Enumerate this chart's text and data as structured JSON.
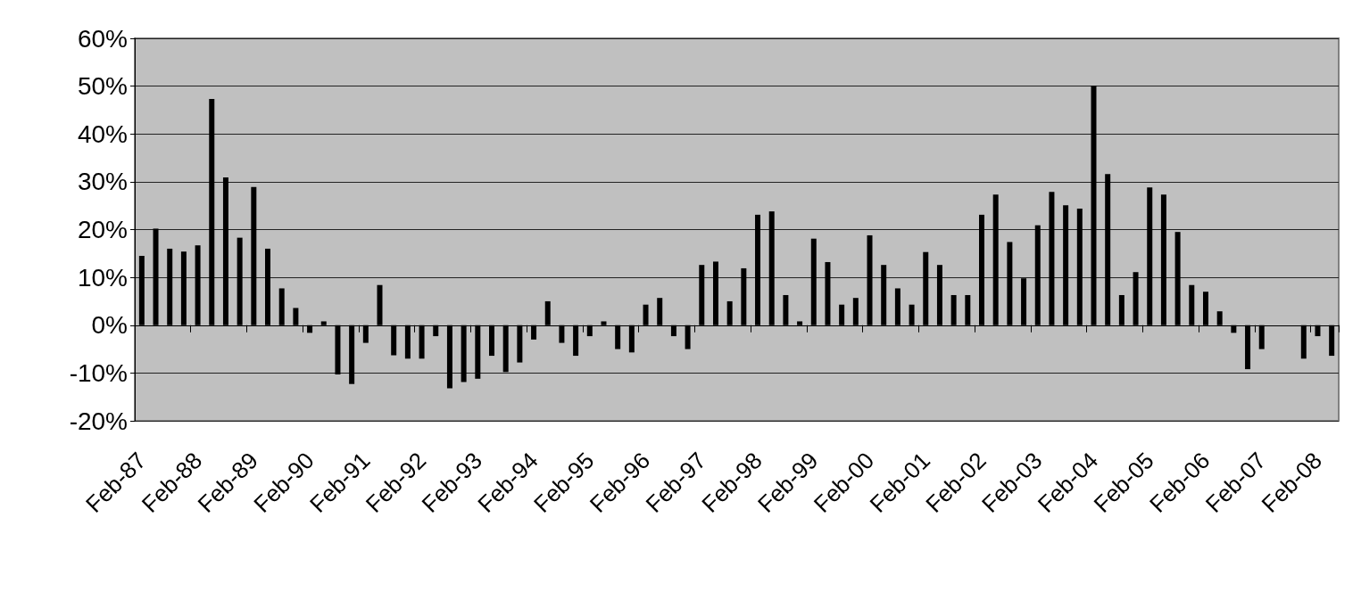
{
  "chart_data": {
    "type": "bar",
    "categories": [
      "Feb-87",
      null,
      null,
      null,
      "Feb-88",
      null,
      null,
      null,
      "Feb-89",
      null,
      null,
      null,
      "Feb-90",
      null,
      null,
      null,
      "Feb-91",
      null,
      null,
      null,
      "Feb-92",
      null,
      null,
      null,
      "Feb-93",
      null,
      null,
      null,
      "Feb-94",
      null,
      null,
      null,
      "Feb-95",
      null,
      null,
      null,
      "Feb-96",
      null,
      null,
      null,
      "Feb-97",
      null,
      null,
      null,
      "Feb-98",
      null,
      null,
      null,
      "Feb-99",
      null,
      null,
      null,
      "Feb-00",
      null,
      null,
      null,
      "Feb-01",
      null,
      null,
      null,
      "Feb-02",
      null,
      null,
      null,
      "Feb-03",
      null,
      null,
      null,
      "Feb-04",
      null,
      null,
      null,
      "Feb-05",
      null,
      null,
      null,
      "Feb-06",
      null,
      null,
      null,
      "Feb-07",
      null,
      null,
      null,
      "Feb-08",
      null
    ],
    "values": [
      14.5,
      20.2,
      16.0,
      15.4,
      16.7,
      47.3,
      30.9,
      18.3,
      28.9,
      16.0,
      7.7,
      3.6,
      -1.6,
      0.8,
      -10.3,
      -12.3,
      -3.7,
      8.4,
      -6.3,
      -7.0,
      -7.0,
      -2.3,
      -13.2,
      -11.9,
      -11.2,
      -6.4,
      -9.8,
      -7.8,
      -3.0,
      5.0,
      -3.7,
      -6.4,
      -2.3,
      0.8,
      -5.0,
      -5.7,
      4.3,
      5.7,
      -2.3,
      -5.0,
      12.6,
      13.3,
      5.0,
      11.9,
      23.1,
      23.8,
      6.3,
      0.8,
      18.1,
      13.2,
      4.3,
      5.7,
      18.8,
      12.6,
      7.7,
      4.3,
      15.3,
      12.6,
      6.3,
      6.3,
      23.1,
      27.3,
      17.4,
      9.8,
      20.9,
      27.9,
      25.1,
      24.4,
      50.1,
      31.6,
      6.3,
      11.1,
      28.8,
      27.3,
      19.5,
      8.4,
      7.0,
      2.9,
      -1.6,
      -9.2,
      -5.0,
      null,
      null,
      -7.0,
      -2.3,
      -6.4
    ],
    "color": "#000000",
    "ylim": [
      -20,
      60
    ],
    "yticks": [
      {
        "value": -20,
        "label": "-20%"
      },
      {
        "value": -10,
        "label": "-10%"
      },
      {
        "value": 0,
        "label": "0%"
      },
      {
        "value": 10,
        "label": "10%"
      },
      {
        "value": 20,
        "label": "20%"
      },
      {
        "value": 30,
        "label": "30%"
      },
      {
        "value": 40,
        "label": "40%"
      },
      {
        "value": 50,
        "label": "50%"
      },
      {
        "value": 60,
        "label": "60%"
      }
    ],
    "grid": "y"
  }
}
